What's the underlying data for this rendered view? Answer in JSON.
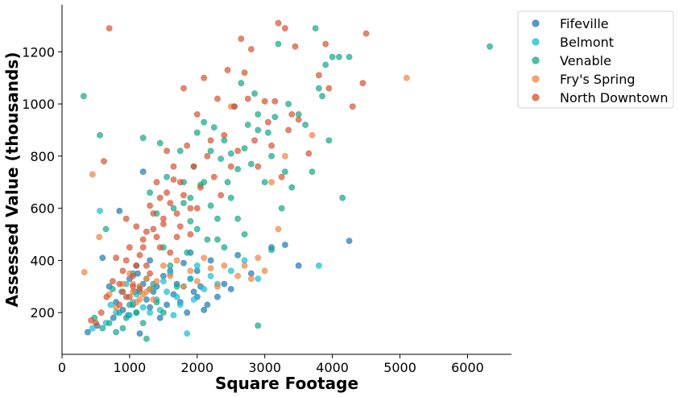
{
  "chart_data": {
    "type": "scatter",
    "title": "",
    "xlabel": "Square Footage",
    "ylabel": "Assessed Value (thousands)",
    "xlim": [
      0,
      6650
    ],
    "ylim": [
      40,
      1380
    ],
    "xticks": [
      0,
      1000,
      2000,
      3000,
      4000,
      5000,
      6000
    ],
    "yticks": [
      200,
      400,
      600,
      800,
      1000,
      1200
    ],
    "grid": false,
    "legend_position": "top-right outside",
    "series": [
      {
        "name": "Fifeville",
        "color": "#1f77b4",
        "points": [
          [
            380,
            125
          ],
          [
            520,
            150
          ],
          [
            600,
            410
          ],
          [
            700,
            300
          ],
          [
            760,
            180
          ],
          [
            800,
            240
          ],
          [
            850,
            590
          ],
          [
            900,
            210
          ],
          [
            950,
            260
          ],
          [
            980,
            190
          ],
          [
            1000,
            330
          ],
          [
            1050,
            230
          ],
          [
            1080,
            280
          ],
          [
            1120,
            350
          ],
          [
            1150,
            120
          ],
          [
            1200,
            310
          ],
          [
            1200,
            740
          ],
          [
            1250,
            250
          ],
          [
            1300,
            220
          ],
          [
            1350,
            280
          ],
          [
            1400,
            300
          ],
          [
            1450,
            180
          ],
          [
            1500,
            340
          ],
          [
            1550,
            230
          ],
          [
            1600,
            360
          ],
          [
            1650,
            270
          ],
          [
            1700,
            310
          ],
          [
            1750,
            240
          ],
          [
            1800,
            390
          ],
          [
            1850,
            200
          ],
          [
            1900,
            330
          ],
          [
            1950,
            280
          ],
          [
            2000,
            360
          ],
          [
            2050,
            300
          ],
          [
            2100,
            210
          ],
          [
            2200,
            400
          ],
          [
            2300,
            260
          ],
          [
            2400,
            310
          ],
          [
            2500,
            290
          ],
          [
            2600,
            420
          ],
          [
            2800,
            350
          ],
          [
            3100,
            450
          ],
          [
            3300,
            460
          ],
          [
            3500,
            380
          ],
          [
            4250,
            475
          ],
          [
            1900,
            430
          ],
          [
            2000,
            260
          ],
          [
            2150,
            230
          ],
          [
            1100,
            380
          ],
          [
            1300,
            400
          ]
        ]
      },
      {
        "name": "Belmont",
        "color": "#17becf",
        "points": [
          [
            450,
            140
          ],
          [
            560,
            590
          ],
          [
            650,
            160
          ],
          [
            720,
            230
          ],
          [
            800,
            200
          ],
          [
            880,
            280
          ],
          [
            950,
            310
          ],
          [
            1000,
            190
          ],
          [
            1050,
            240
          ],
          [
            1100,
            270
          ],
          [
            1150,
            300
          ],
          [
            1200,
            220
          ],
          [
            1250,
            330
          ],
          [
            1300,
            200
          ],
          [
            1350,
            290
          ],
          [
            1400,
            250
          ],
          [
            1500,
            320
          ],
          [
            1550,
            280
          ],
          [
            1600,
            350
          ],
          [
            1700,
            260
          ],
          [
            1800,
            300
          ],
          [
            1850,
            120
          ],
          [
            1900,
            330
          ],
          [
            2000,
            380
          ],
          [
            2100,
            290
          ],
          [
            2200,
            340
          ],
          [
            2300,
            310
          ],
          [
            2500,
            360
          ],
          [
            2700,
            400
          ],
          [
            2900,
            330
          ],
          [
            3800,
            380
          ],
          [
            1450,
            210
          ],
          [
            1650,
            190
          ],
          [
            1750,
            230
          ],
          [
            1950,
            250
          ]
        ]
      },
      {
        "name": "Venable",
        "color": "#17a589",
        "points": [
          [
            320,
            1030
          ],
          [
            480,
            180
          ],
          [
            560,
            880
          ],
          [
            600,
            140
          ],
          [
            650,
            520
          ],
          [
            700,
            160
          ],
          [
            750,
            290
          ],
          [
            800,
            125
          ],
          [
            850,
            200
          ],
          [
            900,
            140
          ],
          [
            950,
            180
          ],
          [
            1000,
            230
          ],
          [
            1050,
            350
          ],
          [
            1100,
            200
          ],
          [
            1150,
            280
          ],
          [
            1200,
            870
          ],
          [
            1250,
            100
          ],
          [
            1300,
            660
          ],
          [
            1350,
            310
          ],
          [
            1400,
            580
          ],
          [
            1450,
            850
          ],
          [
            1500,
            450
          ],
          [
            1550,
            720
          ],
          [
            1600,
            380
          ],
          [
            1650,
            600
          ],
          [
            1700,
            300
          ],
          [
            1750,
            820
          ],
          [
            1800,
            700
          ],
          [
            1850,
            430
          ],
          [
            1900,
            640
          ],
          [
            1950,
            760
          ],
          [
            2000,
            520
          ],
          [
            2050,
            690
          ],
          [
            2100,
            930
          ],
          [
            2150,
            480
          ],
          [
            2200,
            610
          ],
          [
            2250,
            910
          ],
          [
            2300,
            560
          ],
          [
            2350,
            790
          ],
          [
            2400,
            860
          ],
          [
            2450,
            700
          ],
          [
            2500,
            640
          ],
          [
            2550,
            990
          ],
          [
            2600,
            750
          ],
          [
            2650,
            1080
          ],
          [
            2700,
            830
          ],
          [
            2750,
            920
          ],
          [
            2800,
            770
          ],
          [
            2850,
            1040
          ],
          [
            2900,
            960
          ],
          [
            3000,
            700
          ],
          [
            3050,
            890
          ],
          [
            3100,
            800
          ],
          [
            3150,
            950
          ],
          [
            3200,
            1230
          ],
          [
            3250,
            600
          ],
          [
            3300,
            740
          ],
          [
            3350,
            1000
          ],
          [
            3400,
            680
          ],
          [
            3500,
            960
          ],
          [
            3600,
            920
          ],
          [
            3700,
            740
          ],
          [
            3750,
            1290
          ],
          [
            3800,
            1060
          ],
          [
            3850,
            1030
          ],
          [
            3900,
            1150
          ],
          [
            3950,
            860
          ],
          [
            4000,
            1180
          ],
          [
            4100,
            1180
          ],
          [
            4150,
            640
          ],
          [
            4250,
            1180
          ],
          [
            6330,
            1220
          ],
          [
            2900,
            150
          ],
          [
            1100,
            200
          ],
          [
            1200,
            160
          ],
          [
            1300,
            290
          ],
          [
            1400,
            240
          ],
          [
            1500,
            200
          ],
          [
            2200,
            820
          ],
          [
            2000,
            890
          ],
          [
            1900,
            550
          ],
          [
            2400,
            450
          ],
          [
            2700,
            500
          ],
          [
            3100,
            440
          ],
          [
            2300,
            480
          ],
          [
            2600,
            560
          ],
          [
            1800,
            620
          ],
          [
            2100,
            700
          ],
          [
            2500,
            810
          ],
          [
            2900,
            900
          ]
        ]
      },
      {
        "name": "Fry's Spring",
        "color": "#ee8543",
        "points": [
          [
            330,
            355
          ],
          [
            450,
            730
          ],
          [
            550,
            490
          ],
          [
            700,
            270
          ],
          [
            800,
            220
          ],
          [
            900,
            310
          ],
          [
            950,
            260
          ],
          [
            1000,
            350
          ],
          [
            1050,
            280
          ],
          [
            1100,
            240
          ],
          [
            1150,
            300
          ],
          [
            1200,
            270
          ],
          [
            1250,
            330
          ],
          [
            1300,
            290
          ],
          [
            1350,
            250
          ],
          [
            1400,
            320
          ],
          [
            1500,
            380
          ],
          [
            1600,
            340
          ],
          [
            1700,
            400
          ],
          [
            1800,
            300
          ],
          [
            1900,
            360
          ],
          [
            2000,
            320
          ],
          [
            2100,
            410
          ],
          [
            2200,
            370
          ],
          [
            2300,
            300
          ],
          [
            2400,
            380
          ],
          [
            2500,
            990
          ],
          [
            2600,
            340
          ],
          [
            2700,
            380
          ],
          [
            2800,
            330
          ],
          [
            2900,
            410
          ],
          [
            3000,
            360
          ],
          [
            3100,
            700
          ],
          [
            3200,
            520
          ],
          [
            3300,
            800
          ],
          [
            3700,
            880
          ],
          [
            5100,
            1100
          ],
          [
            1150,
            250
          ],
          [
            1250,
            280
          ],
          [
            1050,
            310
          ]
        ]
      },
      {
        "name": "North Downtown",
        "color": "#d35433",
        "points": [
          [
            430,
            170
          ],
          [
            500,
            160
          ],
          [
            580,
            200
          ],
          [
            620,
            780
          ],
          [
            660,
            260
          ],
          [
            700,
            1290
          ],
          [
            750,
            320
          ],
          [
            800,
            410
          ],
          [
            850,
            230
          ],
          [
            900,
            360
          ],
          [
            950,
            560
          ],
          [
            1000,
            450
          ],
          [
            1050,
            300
          ],
          [
            1100,
            530
          ],
          [
            1150,
            420
          ],
          [
            1200,
            480
          ],
          [
            1250,
            380
          ],
          [
            1300,
            610
          ],
          [
            1350,
            520
          ],
          [
            1400,
            700
          ],
          [
            1450,
            450
          ],
          [
            1500,
            540
          ],
          [
            1550,
            820
          ],
          [
            1600,
            620
          ],
          [
            1650,
            760
          ],
          [
            1700,
            490
          ],
          [
            1750,
            700
          ],
          [
            1800,
            1060
          ],
          [
            1850,
            840
          ],
          [
            1900,
            600
          ],
          [
            1950,
            760
          ],
          [
            2000,
            960
          ],
          [
            2050,
            680
          ],
          [
            2100,
            1100
          ],
          [
            2150,
            800
          ],
          [
            2200,
            860
          ],
          [
            2250,
            720
          ],
          [
            2300,
            1020
          ],
          [
            2350,
            650
          ],
          [
            2400,
            880
          ],
          [
            2450,
            1130
          ],
          [
            2500,
            760
          ],
          [
            2550,
            990
          ],
          [
            2600,
            820
          ],
          [
            2650,
            1250
          ],
          [
            2700,
            1120
          ],
          [
            2750,
            1020
          ],
          [
            2800,
            1210
          ],
          [
            2850,
            860
          ],
          [
            2900,
            760
          ],
          [
            3000,
            1010
          ],
          [
            3050,
            930
          ],
          [
            3100,
            840
          ],
          [
            3150,
            1010
          ],
          [
            3200,
            1310
          ],
          [
            3250,
            720
          ],
          [
            3300,
            1290
          ],
          [
            3350,
            900
          ],
          [
            3400,
            960
          ],
          [
            3450,
            1220
          ],
          [
            3500,
            940
          ],
          [
            3650,
            810
          ],
          [
            3800,
            1110
          ],
          [
            3900,
            1230
          ],
          [
            3950,
            1060
          ],
          [
            4300,
            990
          ],
          [
            4450,
            1080
          ],
          [
            4500,
            1270
          ],
          [
            1000,
            260
          ],
          [
            1050,
            340
          ],
          [
            1100,
            380
          ],
          [
            1150,
            290
          ],
          [
            1200,
            450
          ],
          [
            1250,
            510
          ],
          [
            1300,
            350
          ],
          [
            1350,
            580
          ],
          [
            1400,
            490
          ],
          [
            1450,
            640
          ],
          [
            1500,
            560
          ],
          [
            1550,
            660
          ],
          [
            1600,
            430
          ],
          [
            1650,
            710
          ],
          [
            1700,
            580
          ],
          [
            1750,
            530
          ],
          [
            900,
            280
          ],
          [
            950,
            400
          ],
          [
            850,
            310
          ],
          [
            1900,
            500
          ],
          [
            2000,
            600
          ],
          [
            1800,
            650
          ]
        ]
      }
    ]
  }
}
